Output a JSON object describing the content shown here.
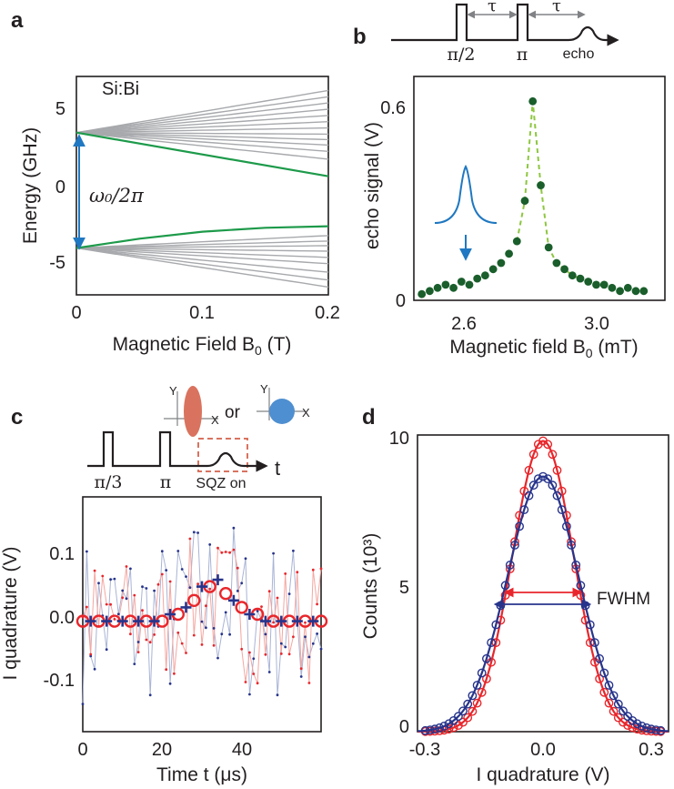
{
  "panels": {
    "a": {
      "label": "a"
    },
    "b": {
      "label": "b"
    },
    "c": {
      "label": "c"
    },
    "d": {
      "label": "d"
    }
  },
  "pulse_b": {
    "half_pi": "π/2",
    "pi": "π",
    "tau": "τ",
    "echo": "echo"
  },
  "pulse_c": {
    "third_pi": "π/3",
    "pi": "π",
    "sqz": "SQZ on",
    "t": "t",
    "or": "or",
    "y": "Y",
    "x": "X"
  },
  "annotations": {
    "si_bi": "Si:Bi",
    "omega": "ω₀/2π",
    "fwhm": "FWHM"
  },
  "colors": {
    "gray": "#a7a9ac",
    "green": "#1d9a4a",
    "blue_arrow": "#1f78c1",
    "dark_green": "#1a5e2b",
    "lime_dash": "#8dc63f",
    "red": "#e8262b",
    "navy": "#27348b",
    "light_red": "#f4a6a0",
    "light_blue": "#a9b4d6",
    "salmon": "#d9735f",
    "sky": "#4e8fd1"
  },
  "chart_data": [
    {
      "panel": "a",
      "type": "line",
      "xlabel": "Magnetic Field B0 (T)",
      "ylabel": "Energy (GHz)",
      "xlim": [
        0,
        0.2
      ],
      "ylim": [
        -7,
        7
      ],
      "xticks": [
        "0",
        "0.1",
        "0.2"
      ],
      "yticks": [
        "5",
        "0",
        "-5"
      ],
      "upper_branch": {
        "start": 3.4,
        "ends": [
          6.1,
          5.7,
          5.3,
          4.9,
          4.5,
          4.1,
          3.7,
          3.3,
          2.95,
          2.6,
          2.2,
          1.7
        ]
      },
      "lower_branch": {
        "start": -4.0,
        "ends": [
          -5.0,
          -5.55,
          -6.05,
          -6.5,
          -4.6,
          -4.2,
          -3.85,
          -3.55,
          -3.2
        ]
      },
      "highlighted": [
        {
          "name": "upper",
          "x": [
            0,
            0.2
          ],
          "y": [
            3.4,
            0.6
          ]
        },
        {
          "name": "lower",
          "x": [
            0,
            0.05,
            0.1,
            0.15,
            0.2
          ],
          "y": [
            -4.0,
            -3.4,
            -2.95,
            -2.7,
            -2.6
          ]
        }
      ],
      "arrow": {
        "x": 0.012,
        "y": [
          -4.0,
          3.4
        ]
      }
    },
    {
      "panel": "b",
      "type": "scatter",
      "xlabel": "Magnetic field B0 (mT)",
      "ylabel": "echo signal (V)",
      "xlim": [
        2.35,
        3.3
      ],
      "ylim": [
        -0.02,
        0.7
      ],
      "xticks": [
        "2.6",
        "3.0"
      ],
      "yticks": [
        "0.6",
        "0"
      ],
      "x": [
        2.38,
        2.41,
        2.44,
        2.47,
        2.5,
        2.53,
        2.56,
        2.59,
        2.62,
        2.65,
        2.68,
        2.71,
        2.74,
        2.77,
        2.8,
        2.83,
        2.86,
        2.89,
        2.92,
        2.95,
        2.98,
        3.01,
        3.04,
        3.07,
        3.1,
        3.13,
        3.16,
        3.19,
        3.22
      ],
      "y": [
        0.0,
        0.01,
        0.02,
        0.03,
        0.02,
        0.04,
        0.03,
        0.05,
        0.06,
        0.08,
        0.1,
        0.13,
        0.17,
        0.3,
        0.62,
        0.35,
        0.15,
        0.1,
        0.08,
        0.06,
        0.05,
        0.04,
        0.03,
        0.03,
        0.02,
        0.01,
        0.02,
        0.01,
        0.01
      ]
    },
    {
      "panel": "c",
      "type": "line",
      "xlabel": "Time t (μs)",
      "ylabel": "I quadrature (V)",
      "xlim": [
        0,
        60
      ],
      "ylim": [
        -0.16,
        0.18
      ],
      "xticks": [
        "0",
        "20",
        "40"
      ],
      "yticks": [
        "0.1",
        "0.0",
        "-0.1"
      ],
      "series": [
        {
          "name": "circles",
          "x": [
            0,
            4,
            8,
            12,
            16,
            20,
            24,
            28,
            32,
            36,
            40,
            44,
            48,
            52,
            56,
            60
          ],
          "y": [
            0,
            0,
            0,
            0,
            0,
            0,
            0.01,
            0.03,
            0.05,
            0.04,
            0.02,
            0.01,
            0,
            0,
            0,
            0
          ]
        },
        {
          "name": "crosses",
          "x": [
            2,
            6,
            10,
            14,
            18,
            22,
            26,
            30,
            34,
            38,
            42,
            46,
            50,
            54,
            58
          ],
          "y": [
            0,
            0,
            0,
            0,
            0,
            0.01,
            0.02,
            0.05,
            0.06,
            0.03,
            0.01,
            0,
            0,
            0,
            0
          ]
        }
      ]
    },
    {
      "panel": "d",
      "type": "line",
      "xlabel": "I quadrature (V)",
      "ylabel": "Counts (10³)",
      "xlim": [
        -0.32,
        0.32
      ],
      "ylim": [
        0,
        10
      ],
      "xticks": [
        "-0.3",
        "0.0",
        "0.3"
      ],
      "yticks": [
        "10",
        "5",
        "0"
      ],
      "series": [
        {
          "name": "red",
          "amp": 9.8,
          "sigma": 0.078
        },
        {
          "name": "blue",
          "amp": 8.6,
          "sigma": 0.091
        }
      ]
    }
  ]
}
